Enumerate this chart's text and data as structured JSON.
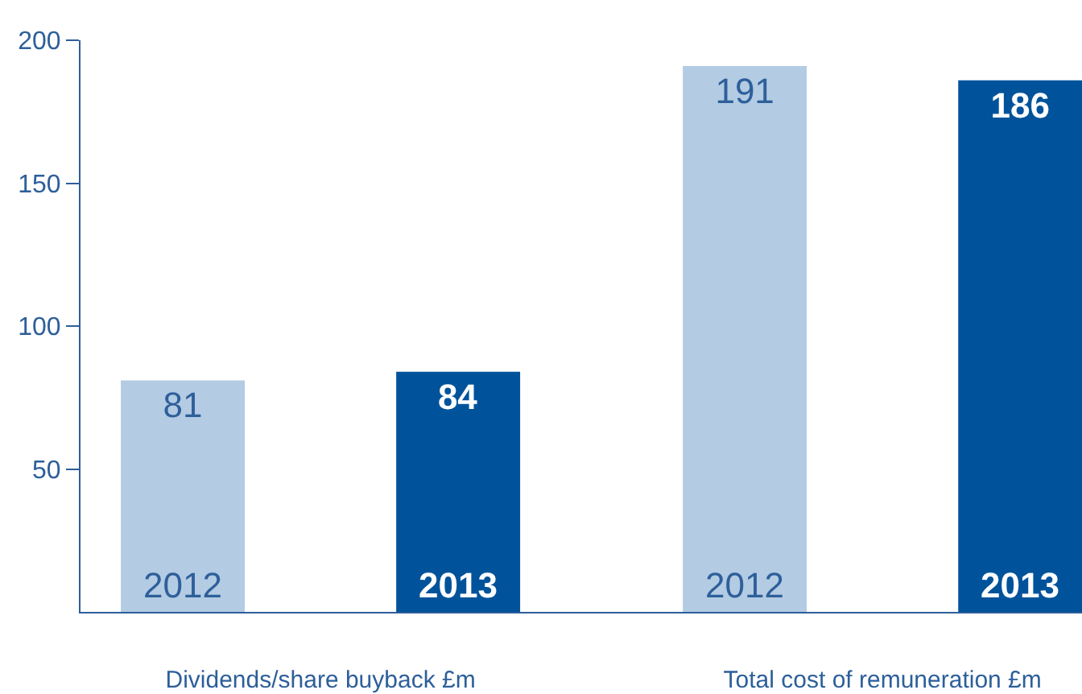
{
  "chart_data": {
    "type": "bar",
    "categories": [
      "Dividends/share buyback £m",
      "Total cost of remuneration £m"
    ],
    "series": [
      {
        "name": "2012",
        "color": "#b3cbe3",
        "values": [
          81,
          191
        ]
      },
      {
        "name": "2013",
        "color": "#00539b",
        "values": [
          84,
          186
        ]
      }
    ],
    "ylim": [
      0,
      200
    ],
    "yticks": [
      50,
      100,
      150,
      200
    ],
    "data_labels": true,
    "legend": false
  }
}
